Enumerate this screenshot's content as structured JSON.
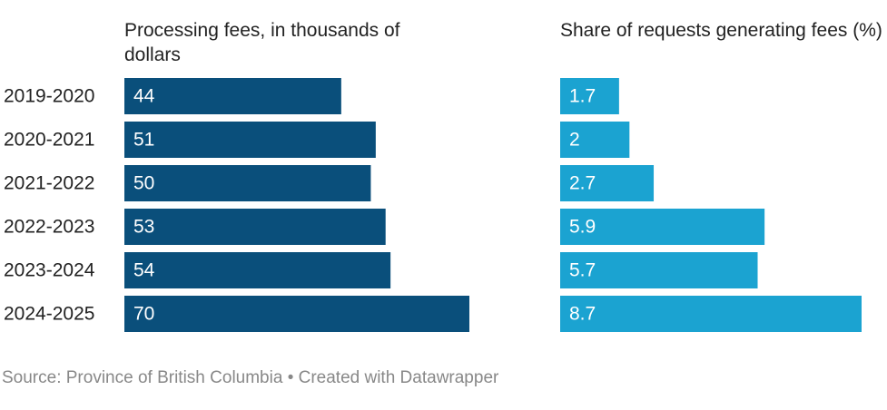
{
  "chart_data": {
    "type": "bar",
    "categories": [
      "2019-2020",
      "2020-2021",
      "2021-2022",
      "2022-2023",
      "2023-2024",
      "2024-2025"
    ],
    "series": [
      {
        "name": "Processing fees, in thousands of dollars",
        "color": "#0a4f7b",
        "values": [
          44,
          51,
          50,
          53,
          54,
          70
        ]
      },
      {
        "name": "Share of requests generating fees (%)",
        "color": "#1ba3d1",
        "values": [
          1.7,
          2,
          2.7,
          5.9,
          5.7,
          8.7
        ]
      }
    ],
    "source": "Source: Province of British Columbia • Created with Datawrapper"
  }
}
